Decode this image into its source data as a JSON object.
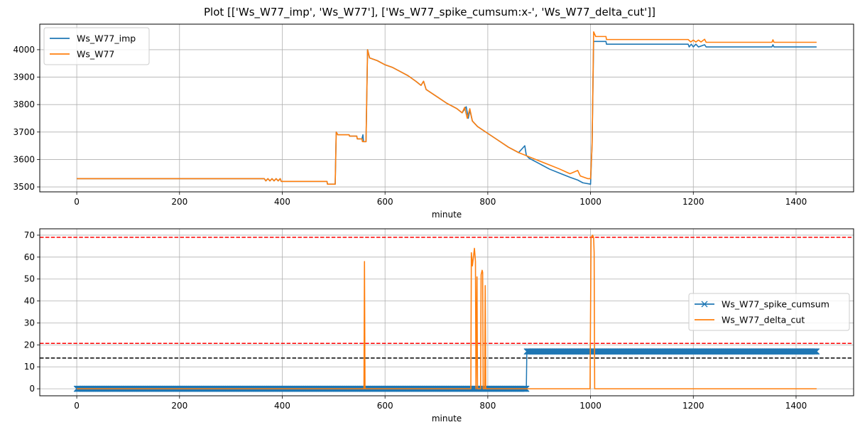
{
  "title": "Plot [['Ws_W77_imp', 'Ws_W77'], ['Ws_W77_spike_cumsum:x-', 'Ws_W77_delta_cut']]",
  "chart_data": [
    {
      "type": "line",
      "xlabel": "minute",
      "ylabel": "",
      "xlim": [
        -72,
        1512
      ],
      "ylim": [
        3482,
        4093
      ],
      "xticks": [
        0,
        200,
        400,
        600,
        800,
        1000,
        1200,
        1400
      ],
      "yticks": [
        3500,
        3600,
        3700,
        3800,
        3900,
        4000
      ],
      "grid": true,
      "legend": "upper left",
      "series": [
        {
          "name": "Ws_W77_imp",
          "color": "#1f77b4",
          "points": [
            [
              0,
              3530
            ],
            [
              365,
              3530
            ],
            [
              368,
              3522
            ],
            [
              372,
              3530
            ],
            [
              376,
              3522
            ],
            [
              380,
              3530
            ],
            [
              384,
              3522
            ],
            [
              388,
              3530
            ],
            [
              392,
              3522
            ],
            [
              396,
              3530
            ],
            [
              398,
              3520
            ],
            [
              487,
              3520
            ],
            [
              488,
              3510
            ],
            [
              503,
              3510
            ],
            [
              505,
              3700
            ],
            [
              508,
              3690
            ],
            [
              530,
              3690
            ],
            [
              531,
              3685
            ],
            [
              545,
              3685
            ],
            [
              546,
              3675
            ],
            [
              555,
              3675
            ],
            [
              557,
              3690
            ],
            [
              558,
              3665
            ],
            [
              563,
              3665
            ],
            [
              566,
              4000
            ],
            [
              570,
              3970
            ],
            [
              585,
              3960
            ],
            [
              600,
              3945
            ],
            [
              615,
              3935
            ],
            [
              630,
              3920
            ],
            [
              645,
              3905
            ],
            [
              660,
              3885
            ],
            [
              670,
              3870
            ],
            [
              675,
              3885
            ],
            [
              680,
              3855
            ],
            [
              700,
              3830
            ],
            [
              720,
              3805
            ],
            [
              740,
              3785
            ],
            [
              750,
              3770
            ],
            [
              758,
              3792
            ],
            [
              762,
              3750
            ],
            [
              765,
              3780
            ],
            [
              770,
              3740
            ],
            [
              780,
              3720
            ],
            [
              800,
              3695
            ],
            [
              820,
              3670
            ],
            [
              840,
              3645
            ],
            [
              860,
              3625
            ],
            [
              872,
              3650
            ],
            [
              875,
              3615
            ],
            [
              880,
              3605
            ],
            [
              900,
              3585
            ],
            [
              920,
              3565
            ],
            [
              940,
              3550
            ],
            [
              960,
              3535
            ],
            [
              975,
              3525
            ],
            [
              985,
              3515
            ],
            [
              1000,
              3510
            ],
            [
              1003,
              3660
            ],
            [
              1006,
              4030
            ],
            [
              1030,
              4030
            ],
            [
              1031,
              4020
            ],
            [
              1190,
              4020
            ],
            [
              1192,
              4010
            ],
            [
              1196,
              4020
            ],
            [
              1200,
              4010
            ],
            [
              1205,
              4020
            ],
            [
              1210,
              4010
            ],
            [
              1222,
              4018
            ],
            [
              1225,
              4010
            ],
            [
              1353,
              4010
            ],
            [
              1355,
              4018
            ],
            [
              1357,
              4010
            ],
            [
              1440,
              4010
            ]
          ]
        },
        {
          "name": "Ws_W77",
          "color": "#ff7f0e",
          "points": [
            [
              0,
              3530
            ],
            [
              365,
              3530
            ],
            [
              368,
              3522
            ],
            [
              372,
              3530
            ],
            [
              376,
              3522
            ],
            [
              380,
              3530
            ],
            [
              384,
              3522
            ],
            [
              388,
              3530
            ],
            [
              392,
              3522
            ],
            [
              396,
              3530
            ],
            [
              398,
              3520
            ],
            [
              487,
              3520
            ],
            [
              488,
              3510
            ],
            [
              503,
              3510
            ],
            [
              505,
              3700
            ],
            [
              508,
              3690
            ],
            [
              530,
              3690
            ],
            [
              531,
              3685
            ],
            [
              545,
              3685
            ],
            [
              546,
              3675
            ],
            [
              555,
              3675
            ],
            [
              556,
              3665
            ],
            [
              563,
              3665
            ],
            [
              566,
              4000
            ],
            [
              570,
              3970
            ],
            [
              585,
              3960
            ],
            [
              600,
              3945
            ],
            [
              615,
              3935
            ],
            [
              630,
              3920
            ],
            [
              645,
              3905
            ],
            [
              660,
              3885
            ],
            [
              670,
              3870
            ],
            [
              675,
              3885
            ],
            [
              680,
              3855
            ],
            [
              700,
              3830
            ],
            [
              720,
              3805
            ],
            [
              740,
              3785
            ],
            [
              750,
              3770
            ],
            [
              755,
              3790
            ],
            [
              760,
              3750
            ],
            [
              765,
              3785
            ],
            [
              770,
              3740
            ],
            [
              780,
              3720
            ],
            [
              800,
              3695
            ],
            [
              820,
              3670
            ],
            [
              840,
              3645
            ],
            [
              860,
              3625
            ],
            [
              880,
              3610
            ],
            [
              900,
              3595
            ],
            [
              920,
              3580
            ],
            [
              940,
              3565
            ],
            [
              960,
              3548
            ],
            [
              975,
              3560
            ],
            [
              980,
              3540
            ],
            [
              995,
              3530
            ],
            [
              1000,
              3530
            ],
            [
              1003,
              3650
            ],
            [
              1006,
              4065
            ],
            [
              1010,
              4048
            ],
            [
              1030,
              4048
            ],
            [
              1031,
              4037
            ],
            [
              1190,
              4037
            ],
            [
              1195,
              4028
            ],
            [
              1200,
              4035
            ],
            [
              1205,
              4028
            ],
            [
              1210,
              4035
            ],
            [
              1215,
              4028
            ],
            [
              1222,
              4038
            ],
            [
              1225,
              4027
            ],
            [
              1353,
              4027
            ],
            [
              1355,
              4036
            ],
            [
              1357,
              4027
            ],
            [
              1440,
              4027
            ]
          ]
        }
      ]
    },
    {
      "type": "line",
      "xlabel": "minute",
      "ylabel": "",
      "xlim": [
        -72,
        1512
      ],
      "ylim": [
        -3.2,
        72.9
      ],
      "xticks": [
        0,
        200,
        400,
        600,
        800,
        1000,
        1200,
        1400
      ],
      "yticks": [
        0,
        10,
        20,
        30,
        40,
        50,
        60,
        70
      ],
      "grid": true,
      "legend": "center right",
      "series": [
        {
          "name": "Ws_W77_spike_cumsum",
          "color": "#1f77b4",
          "marker": "x",
          "steps": [
            {
              "from": 0,
              "to": 875,
              "value": 0
            },
            {
              "from": 876,
              "to": 1440,
              "value": 17
            }
          ]
        },
        {
          "name": "Ws_W77_delta_cut",
          "color": "#ff7f0e",
          "points": [
            [
              0,
              0
            ],
            [
              559,
              0
            ],
            [
              560,
              58
            ],
            [
              561,
              0
            ],
            [
              767,
              0
            ],
            [
              768,
              62
            ],
            [
              770,
              56
            ],
            [
              772,
              60
            ],
            [
              774,
              64
            ],
            [
              776,
              58
            ],
            [
              777,
              0
            ],
            [
              779,
              51
            ],
            [
              780,
              0
            ],
            [
              786,
              0
            ],
            [
              787,
              52
            ],
            [
              789,
              54
            ],
            [
              790,
              53
            ],
            [
              791,
              0
            ],
            [
              794,
              0
            ],
            [
              795,
              47
            ],
            [
              796,
              0
            ],
            [
              999,
              0
            ],
            [
              1001,
              69
            ],
            [
              1004,
              70
            ],
            [
              1006,
              69
            ],
            [
              1007,
              62
            ],
            [
              1008,
              0
            ],
            [
              1440,
              0
            ]
          ]
        }
      ],
      "hlines": [
        {
          "y": 69,
          "color": "#ff0000",
          "style": "dashed"
        },
        {
          "y": 20.7,
          "color": "#ff0000",
          "style": "dashed"
        },
        {
          "y": 14,
          "color": "#000000",
          "style": "dashed"
        }
      ]
    }
  ]
}
